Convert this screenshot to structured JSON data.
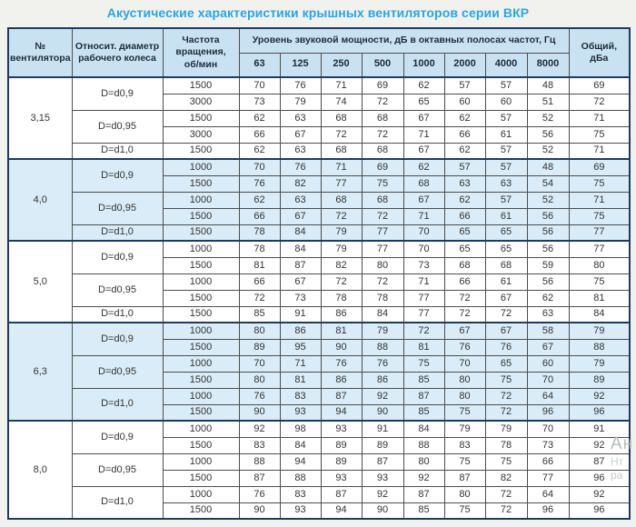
{
  "title": "Акустические характеристики крышных вентиляторов серии ВКР",
  "colors": {
    "title_blue": "#2ba6df",
    "header_bg": "#c9e2f1",
    "shaded_row_bg": "#d9ecf7",
    "outer_border_navy": "#1f3a5f",
    "inner_border_gray": "#4d4d4d"
  },
  "table": {
    "headers": {
      "fan_number": "№\nвентилятора",
      "diameter": "Относит. диаметр\nрабочего колеса",
      "speed": "Частота\nвращения,\nоб/мин",
      "octave_span": "Уровень звуковой мощности, дБ в октавных полосах частот, Гц",
      "octave_bands": [
        "63",
        "125",
        "250",
        "500",
        "1000",
        "2000",
        "4000",
        "8000"
      ],
      "total": "Общий,\nдБа"
    },
    "groups": [
      {
        "fan": "3,15",
        "shaded": false,
        "diameters": [
          {
            "label": "D=d0,9",
            "rows": [
              {
                "speed": "1500",
                "levels": [
                  70,
                  76,
                  71,
                  69,
                  62,
                  57,
                  57,
                  48
                ],
                "total": 69
              },
              {
                "speed": "3000",
                "levels": [
                  73,
                  79,
                  74,
                  72,
                  65,
                  60,
                  60,
                  51
                ],
                "total": 72
              }
            ]
          },
          {
            "label": "D=d0,95",
            "rows": [
              {
                "speed": "1500",
                "levels": [
                  62,
                  63,
                  68,
                  68,
                  67,
                  62,
                  57,
                  52
                ],
                "total": 71
              },
              {
                "speed": "3000",
                "levels": [
                  66,
                  67,
                  72,
                  72,
                  71,
                  66,
                  61,
                  56
                ],
                "total": 75
              }
            ]
          },
          {
            "label": "D=d1,0",
            "rows": [
              {
                "speed": "1500",
                "levels": [
                  62,
                  63,
                  68,
                  68,
                  67,
                  62,
                  57,
                  52
                ],
                "total": 71
              }
            ]
          }
        ]
      },
      {
        "fan": "4,0",
        "shaded": true,
        "diameters": [
          {
            "label": "D=d0,9",
            "rows": [
              {
                "speed": "1000",
                "levels": [
                  70,
                  76,
                  71,
                  69,
                  62,
                  57,
                  57,
                  48
                ],
                "total": 69
              },
              {
                "speed": "1500",
                "levels": [
                  76,
                  82,
                  77,
                  75,
                  68,
                  63,
                  63,
                  54
                ],
                "total": 75
              }
            ]
          },
          {
            "label": "D=d0,95",
            "rows": [
              {
                "speed": "1000",
                "levels": [
                  62,
                  63,
                  68,
                  68,
                  67,
                  62,
                  57,
                  52
                ],
                "total": 71
              },
              {
                "speed": "1500",
                "levels": [
                  66,
                  67,
                  72,
                  72,
                  71,
                  66,
                  61,
                  56
                ],
                "total": 75
              }
            ]
          },
          {
            "label": "D=d1,0",
            "rows": [
              {
                "speed": "1500",
                "levels": [
                  78,
                  84,
                  79,
                  77,
                  70,
                  65,
                  65,
                  56
                ],
                "total": 77
              }
            ]
          }
        ]
      },
      {
        "fan": "5,0",
        "shaded": false,
        "diameters": [
          {
            "label": "D=d0,9",
            "rows": [
              {
                "speed": "1000",
                "levels": [
                  78,
                  84,
                  79,
                  77,
                  70,
                  65,
                  65,
                  56
                ],
                "total": 77
              },
              {
                "speed": "1500",
                "levels": [
                  81,
                  87,
                  82,
                  80,
                  73,
                  68,
                  68,
                  59
                ],
                "total": 80
              }
            ]
          },
          {
            "label": "D=d0,95",
            "rows": [
              {
                "speed": "1000",
                "levels": [
                  66,
                  67,
                  72,
                  72,
                  71,
                  66,
                  61,
                  56
                ],
                "total": 75
              },
              {
                "speed": "1500",
                "levels": [
                  72,
                  73,
                  78,
                  78,
                  77,
                  72,
                  67,
                  62
                ],
                "total": 81
              }
            ]
          },
          {
            "label": "D=d1,0",
            "rows": [
              {
                "speed": "1500",
                "levels": [
                  85,
                  91,
                  86,
                  84,
                  77,
                  72,
                  72,
                  63
                ],
                "total": 84
              }
            ]
          }
        ]
      },
      {
        "fan": "6,3",
        "shaded": true,
        "diameters": [
          {
            "label": "D=d0,9",
            "rows": [
              {
                "speed": "1000",
                "levels": [
                  80,
                  86,
                  81,
                  79,
                  72,
                  67,
                  67,
                  58
                ],
                "total": 79
              },
              {
                "speed": "1500",
                "levels": [
                  89,
                  95,
                  90,
                  88,
                  81,
                  76,
                  76,
                  67
                ],
                "total": 88
              }
            ]
          },
          {
            "label": "D=d0,95",
            "rows": [
              {
                "speed": "1000",
                "levels": [
                  70,
                  71,
                  76,
                  76,
                  75,
                  70,
                  65,
                  60
                ],
                "total": 79
              },
              {
                "speed": "1500",
                "levels": [
                  80,
                  81,
                  86,
                  86,
                  85,
                  80,
                  75,
                  70
                ],
                "total": 89
              }
            ]
          },
          {
            "label": "D=d1,0",
            "rows": [
              {
                "speed": "1000",
                "levels": [
                  76,
                  83,
                  87,
                  92,
                  87,
                  80,
                  72,
                  64
                ],
                "total": 92
              },
              {
                "speed": "1500",
                "levels": [
                  90,
                  93,
                  94,
                  90,
                  85,
                  75,
                  72,
                  96
                ],
                "total": 96
              }
            ]
          }
        ]
      },
      {
        "fan": "8,0",
        "shaded": false,
        "diameters": [
          {
            "label": "D=d0,9",
            "rows": [
              {
                "speed": "1000",
                "levels": [
                  92,
                  98,
                  93,
                  91,
                  84,
                  79,
                  79,
                  70
                ],
                "total": 91
              },
              {
                "speed": "1500",
                "levels": [
                  83,
                  84,
                  89,
                  89,
                  88,
                  83,
                  78,
                  73
                ],
                "total": 92
              }
            ]
          },
          {
            "label": "D=d0,95",
            "rows": [
              {
                "speed": "1000",
                "levels": [
                  88,
                  94,
                  89,
                  87,
                  80,
                  75,
                  75,
                  66
                ],
                "total": 87
              },
              {
                "speed": "1500",
                "levels": [
                  87,
                  88,
                  93,
                  93,
                  92,
                  87,
                  82,
                  77
                ],
                "total": 96
              }
            ]
          },
          {
            "label": "D=d1,0",
            "rows": [
              {
                "speed": "1000",
                "levels": [
                  76,
                  83,
                  87,
                  92,
                  87,
                  80,
                  72,
                  64
                ],
                "total": 92
              },
              {
                "speed": "1500",
                "levels": [
                  90,
                  93,
                  94,
                  90,
                  85,
                  75,
                  72,
                  96
                ],
                "total": 96
              }
            ]
          }
        ]
      }
    ]
  },
  "watermark": {
    "fragments": [
      "Ан",
      "Нт",
      "ра"
    ]
  }
}
